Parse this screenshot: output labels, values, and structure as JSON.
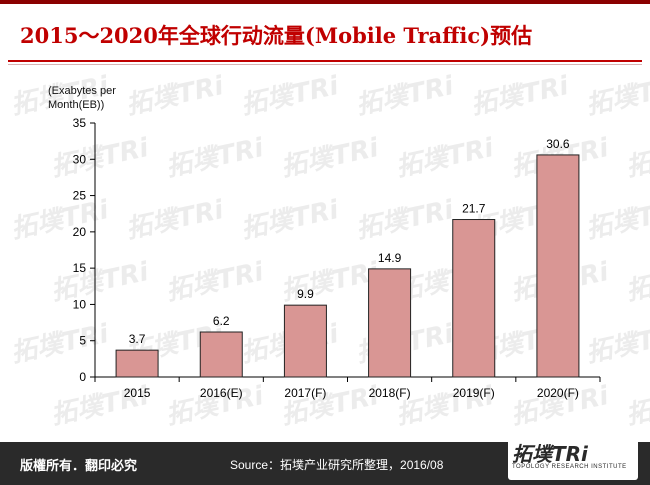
{
  "header": {
    "title": "2015～2020年全球行动流量(Mobile Traffic)预估"
  },
  "watermark": {
    "text": "拓墣TRi"
  },
  "chart_data": {
    "type": "bar",
    "categories": [
      "2015",
      "2016(E)",
      "2017(F)",
      "2018(F)",
      "2019(F)",
      "2020(F)"
    ],
    "values": [
      3.7,
      6.2,
      9.9,
      14.9,
      21.7,
      30.6
    ],
    "data_labels": [
      "3.7",
      "6.2",
      "9.9",
      "14.9",
      "21.7",
      "30.6"
    ],
    "ylabel": "(Exabytes per Month(EB))",
    "ylim": [
      0,
      35
    ],
    "yticks": [
      0,
      5,
      10,
      15,
      20,
      25,
      30,
      35
    ],
    "bar_color": "#d99694",
    "bar_border": "#222222",
    "grid": false,
    "legend": "none"
  },
  "footer": {
    "copyright": "版權所有．翻印必究",
    "source": "Source：拓墣产业研究所整理，2016/08",
    "logo": "拓墣TRi",
    "logo_sub": "TOPOLOGY RESEARCH INSTITUTE",
    "background": "#2a2a2a"
  },
  "colors": {
    "title": "#c00000",
    "accent": "#8a0000"
  }
}
